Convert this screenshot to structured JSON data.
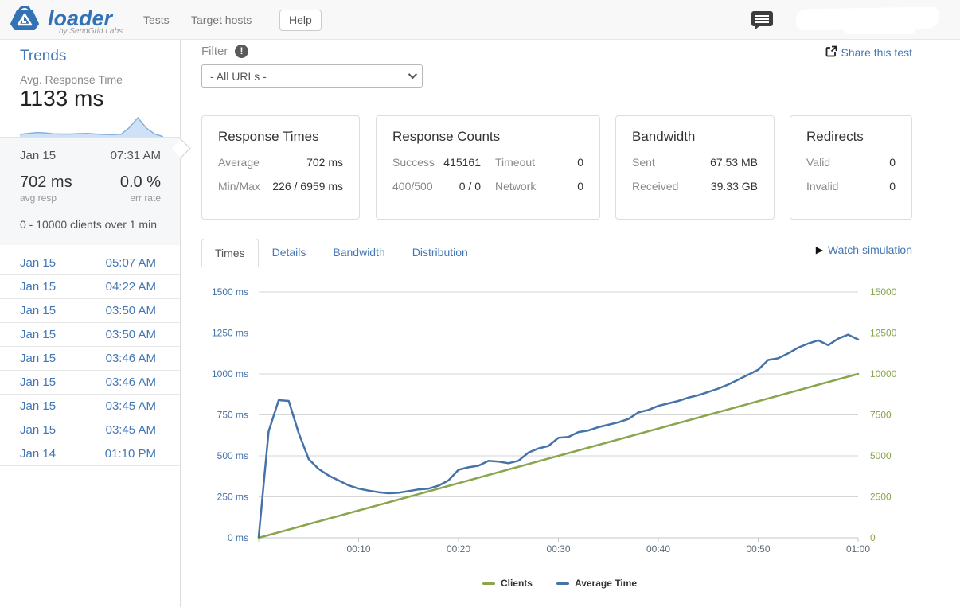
{
  "navbar": {
    "brand": "loader",
    "brand_sub": "by SendGrid Labs",
    "items": [
      "Tests",
      "Target hosts"
    ],
    "help_label": "Help"
  },
  "sidebar": {
    "heading": "Trends",
    "metric_label": "Avg. Response Time",
    "metric_value": "1133 ms",
    "trend_sparkline": [
      0.22,
      0.27,
      0.31,
      0.29,
      0.25,
      0.24,
      0.24,
      0.26,
      0.27,
      0.24,
      0.22,
      0.21,
      0.23,
      0.55,
      1.0,
      0.52,
      0.24,
      0.12
    ],
    "selected_test": {
      "date": "Jan 15",
      "time": "07:31 AM",
      "avg_value": "702 ms",
      "avg_label": "avg resp",
      "err_value": "0.0 %",
      "err_label": "err rate",
      "clients_summary": "0  -  10000 clients over 1 min"
    },
    "history": [
      {
        "date": "Jan 15",
        "time": "05:07 AM"
      },
      {
        "date": "Jan 15",
        "time": "04:22 AM"
      },
      {
        "date": "Jan 15",
        "time": "03:50 AM"
      },
      {
        "date": "Jan 15",
        "time": "03:50 AM"
      },
      {
        "date": "Jan 15",
        "time": "03:46 AM"
      },
      {
        "date": "Jan 15",
        "time": "03:46 AM"
      },
      {
        "date": "Jan 15",
        "time": "03:45 AM"
      },
      {
        "date": "Jan 15",
        "time": "03:45 AM"
      },
      {
        "date": "Jan 14",
        "time": "01:10 PM"
      }
    ]
  },
  "toolbar": {
    "filter_label": "Filter",
    "filter_info_glyph": "!",
    "filter_value": "- All URLs -",
    "share_label": "Share this test"
  },
  "cards": {
    "response_times": {
      "title": "Response Times",
      "rows": [
        {
          "label": "Average",
          "value": "702 ms"
        },
        {
          "label": "Min/Max",
          "value": "226 / 6959 ms"
        }
      ]
    },
    "response_counts": {
      "title": "Response Counts",
      "left_rows": [
        {
          "label": "Success",
          "value": "415161"
        },
        {
          "label": "400/500",
          "value": "0 / 0"
        }
      ],
      "right_rows": [
        {
          "label": "Timeout",
          "value": "0"
        },
        {
          "label": "Network",
          "value": "0"
        }
      ]
    },
    "bandwidth": {
      "title": "Bandwidth",
      "rows": [
        {
          "label": "Sent",
          "value": "67.53 MB"
        },
        {
          "label": "Received",
          "value": "39.33 GB"
        }
      ]
    },
    "redirects": {
      "title": "Redirects",
      "rows": [
        {
          "label": "Valid",
          "value": "0"
        },
        {
          "label": "Invalid",
          "value": "0"
        }
      ]
    }
  },
  "tabs": {
    "items": [
      "Times",
      "Details",
      "Bandwidth",
      "Distribution"
    ],
    "active": "Times",
    "watch_label": "Watch simulation",
    "play_glyph": "▶"
  },
  "chart_data": {
    "type": "line",
    "x_range": [
      0,
      60
    ],
    "x_ticks": [
      {
        "value": 0,
        "label": ""
      },
      {
        "value": 10,
        "label": "00:10"
      },
      {
        "value": 20,
        "label": "00:20"
      },
      {
        "value": 30,
        "label": "00:30"
      },
      {
        "value": 40,
        "label": "00:40"
      },
      {
        "value": 50,
        "label": "00:50"
      },
      {
        "value": 60,
        "label": "01:00"
      }
    ],
    "left_axis": {
      "unit": "ms",
      "max": 1500,
      "ticks": [
        0,
        250,
        500,
        750,
        1000,
        1250,
        1500
      ],
      "color": "#4572a7"
    },
    "right_axis": {
      "unit": "",
      "max": 15000,
      "ticks": [
        0,
        2500,
        5000,
        7500,
        10000,
        12500,
        15000
      ],
      "color": "#89a54e"
    },
    "grid": true,
    "legend_position": "bottom",
    "series": [
      {
        "name": "Clients",
        "color": "#89a54e",
        "axis": "right",
        "x": [
          0,
          60
        ],
        "values": [
          0,
          10000
        ]
      },
      {
        "name": "Average Time",
        "color": "#4572a7",
        "axis": "left",
        "x": [
          0,
          1,
          2,
          3,
          4,
          5,
          6,
          7,
          8,
          9,
          10,
          11,
          12,
          13,
          14,
          15,
          16,
          17,
          18,
          19,
          20,
          21,
          22,
          23,
          24,
          25,
          26,
          27,
          28,
          29,
          30,
          31,
          32,
          33,
          34,
          35,
          36,
          37,
          38,
          39,
          40,
          41,
          42,
          43,
          44,
          45,
          46,
          47,
          48,
          49,
          50,
          51,
          52,
          53,
          54,
          55,
          56,
          57,
          58,
          59,
          60
        ],
        "values": [
          5,
          650,
          840,
          835,
          640,
          480,
          420,
          380,
          350,
          320,
          300,
          288,
          278,
          272,
          275,
          285,
          295,
          300,
          318,
          350,
          415,
          430,
          440,
          470,
          465,
          455,
          470,
          520,
          545,
          560,
          610,
          615,
          645,
          655,
          675,
          690,
          705,
          725,
          765,
          780,
          805,
          820,
          835,
          855,
          870,
          890,
          910,
          935,
          965,
          995,
          1025,
          1085,
          1095,
          1125,
          1160,
          1185,
          1205,
          1175,
          1215,
          1240,
          1210
        ]
      }
    ]
  }
}
